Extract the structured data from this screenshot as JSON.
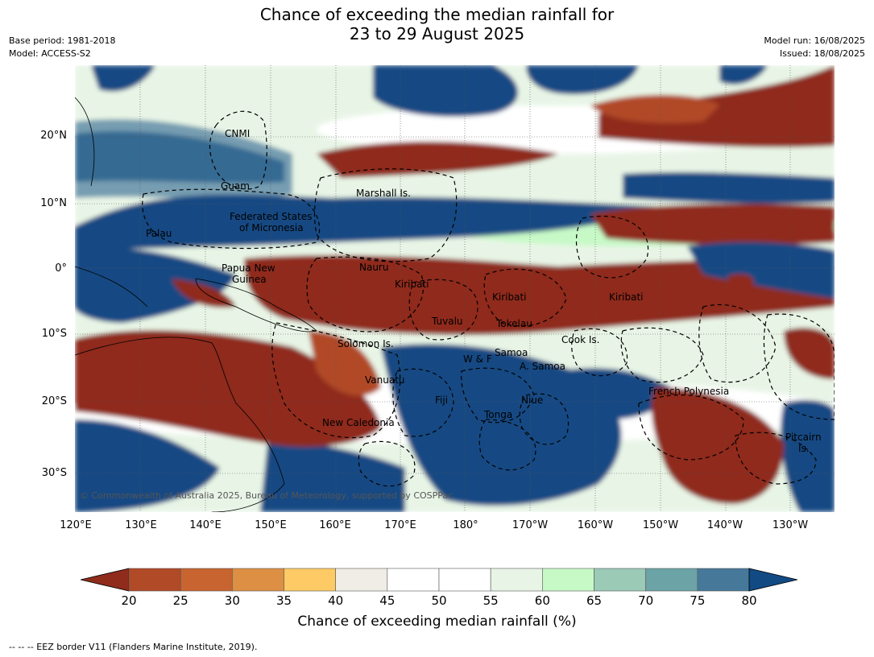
{
  "header": {
    "title_line1": "Chance of exceeding the median rainfall for",
    "title_line2": "23 to 29 August 2025",
    "base_period": "Base period: 1981-2018",
    "model": "Model: ACCESS-S2",
    "model_run": "Model run: 16/08/2025",
    "issued": "Issued: 18/08/2025"
  },
  "map": {
    "lat_labels": [
      "20°N",
      "10°N",
      "0°",
      "10°S",
      "20°S",
      "30°S"
    ],
    "lon_labels": [
      "120°E",
      "130°E",
      "140°E",
      "150°E",
      "160°E",
      "170°E",
      "180°",
      "170°W",
      "160°W",
      "150°W",
      "140°W",
      "130°W"
    ],
    "regions": [
      {
        "id": "cnmi",
        "label": "CNMI"
      },
      {
        "id": "guam",
        "label": "Guam"
      },
      {
        "id": "marshall",
        "label": "Marshall Is."
      },
      {
        "id": "fsm1",
        "label": "Federated States"
      },
      {
        "id": "fsm2",
        "label": "of Micronesia"
      },
      {
        "id": "palau",
        "label": "Palau"
      },
      {
        "id": "nauru",
        "label": "Nauru"
      },
      {
        "id": "png1",
        "label": "Papua New"
      },
      {
        "id": "png2",
        "label": "Guinea"
      },
      {
        "id": "kiribati1",
        "label": "Kiribati"
      },
      {
        "id": "kiribati2",
        "label": "Kiribati"
      },
      {
        "id": "kiribati3",
        "label": "Kiribati"
      },
      {
        "id": "tuvalu",
        "label": "Tuvalu"
      },
      {
        "id": "tokelau",
        "label": "Tokelau"
      },
      {
        "id": "cook",
        "label": "Cook Is."
      },
      {
        "id": "solomon",
        "label": "Solomon Is."
      },
      {
        "id": "samoa",
        "label": "Samoa"
      },
      {
        "id": "wf",
        "label": "W & F"
      },
      {
        "id": "asamoa",
        "label": "A. Samoa"
      },
      {
        "id": "vanuatu",
        "label": "Vanuatu"
      },
      {
        "id": "fiji",
        "label": "Fiji"
      },
      {
        "id": "niue",
        "label": "Niue"
      },
      {
        "id": "frpoly",
        "label": "French Polynesia"
      },
      {
        "id": "tonga",
        "label": "Tonga"
      },
      {
        "id": "newcal",
        "label": "New Caledonia"
      },
      {
        "id": "pitcairn1",
        "label": "Pitcairn"
      },
      {
        "id": "pitcairn2",
        "label": "Is."
      }
    ],
    "copyright": "© Commonwealth of Australia 2025, Bureau of Meteorology, supported by COSPPac"
  },
  "legend": {
    "ticks": [
      "20",
      "25",
      "30",
      "35",
      "40",
      "45",
      "50",
      "55",
      "60",
      "65",
      "70",
      "75",
      "80"
    ],
    "colors": [
      "#8f2c1c",
      "#b14a26",
      "#c76430",
      "#dd8f44",
      "#fdca65",
      "#efede6",
      "#ffffff",
      "#ffffff",
      "#e8f5e6",
      "#c7f9c7",
      "#9bcab7",
      "#6ba3a6",
      "#46789a",
      "#124a83"
    ],
    "label": "Chance of exceeding median rainfall (%)"
  },
  "footnote": "--  --  -- EEZ border V11 (Flanders Marine Institute, 2019)."
}
